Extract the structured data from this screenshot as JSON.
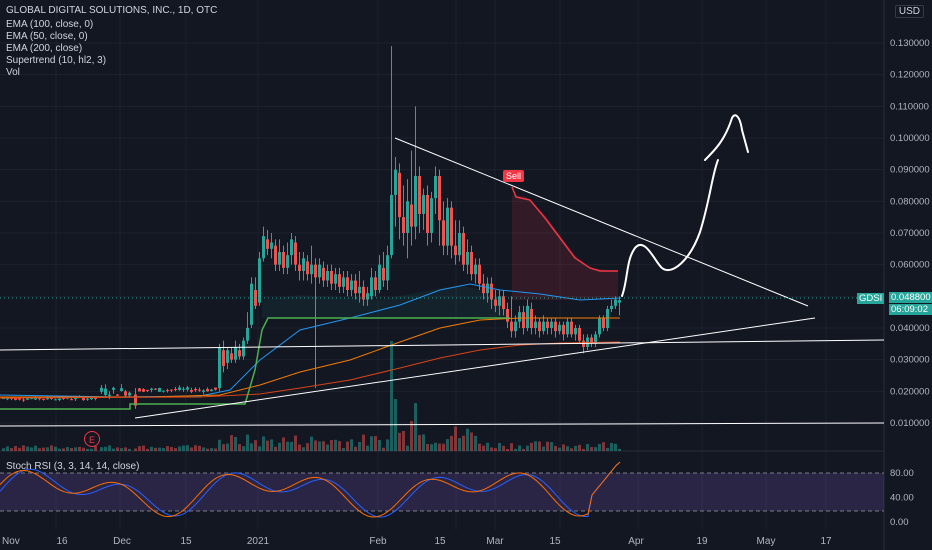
{
  "header": {
    "title": "GLOBAL DIGITAL SOLUTIONS, INC., 1D, OTC",
    "currency": "USD"
  },
  "indicators": [
    "EMA (100, close, 0)",
    "EMA (50, close, 0)",
    "EMA (200, close)",
    "Supertrend (10, hl2, 3)",
    "Vol"
  ],
  "price_axis": {
    "ticks": [
      "0.130000",
      "0.120000",
      "0.110000",
      "0.100000",
      "0.090000",
      "0.080000",
      "0.070000",
      "0.060000",
      "0.050000",
      "0.040000",
      "0.030000",
      "0.020000",
      "0.010000"
    ],
    "tick_values": [
      0.13,
      0.12,
      0.11,
      0.1,
      0.09,
      0.08,
      0.07,
      0.06,
      0.05,
      0.04,
      0.03,
      0.02,
      0.01
    ]
  },
  "last_price": {
    "ticker": "GDSI",
    "value": "0.048800",
    "countdown": "06:09:02"
  },
  "signal": {
    "label": "Sell"
  },
  "earnings_badge": {
    "label": "E"
  },
  "time_axis": {
    "labels": [
      "Nov",
      "16",
      "Dec",
      "15",
      "2021",
      "Feb",
      "15",
      "Mar",
      "15",
      "Apr",
      "19",
      "May",
      "17"
    ]
  },
  "stoch_rsi": {
    "label": "Stoch RSI (3, 3, 14, 14, close)",
    "ticks": [
      "80.00",
      "40.00",
      "0.00"
    ],
    "tick_values": [
      80,
      40,
      0
    ]
  },
  "colors": {
    "background": "#131722",
    "up": "#26a69a",
    "down": "#ef5350",
    "ema100": "#f57c00",
    "ema50": "#2196f3",
    "ema200": "#d84315",
    "supertrend_up": "#4caf50",
    "supertrend_down": "#f23645",
    "rsi_k": "#2962ff",
    "rsi_d": "#ff6d00",
    "rsi_band": "#7e57c2"
  },
  "chart_data": {
    "type": "candlestick",
    "symbol": "GDSI",
    "interval": "1D",
    "y_range": [
      0.0,
      0.135
    ],
    "last_value": 0.0488,
    "stoch_rsi_range": [
      0,
      100
    ],
    "stoch_rsi_levels": [
      80,
      20
    ]
  }
}
